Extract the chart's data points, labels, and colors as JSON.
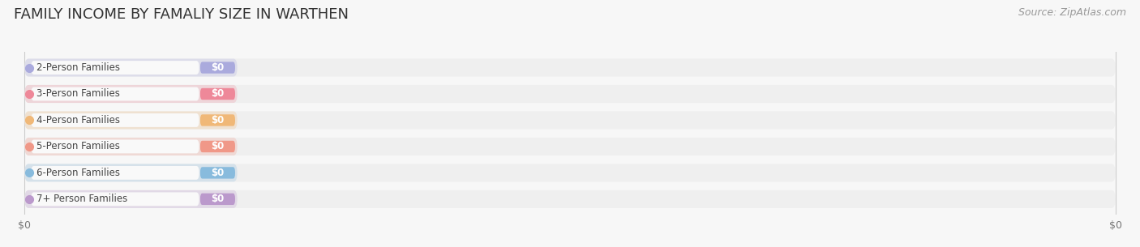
{
  "title": "FAMILY INCOME BY FAMALIY SIZE IN WARTHEN",
  "source": "Source: ZipAtlas.com",
  "categories": [
    "2-Person Families",
    "3-Person Families",
    "4-Person Families",
    "5-Person Families",
    "6-Person Families",
    "7+ Person Families"
  ],
  "values": [
    0,
    0,
    0,
    0,
    0,
    0
  ],
  "bar_colors": [
    "#aaaadd",
    "#ee8899",
    "#f0b878",
    "#f09888",
    "#88bbdd",
    "#bb99cc"
  ],
  "bg_color": "#f7f7f7",
  "bar_bg_color": "#efefef",
  "label_bg_color": "#fafafa",
  "label_color": "#444444",
  "title_color": "#333333",
  "source_color": "#999999",
  "title_fontsize": 13,
  "label_fontsize": 8.5,
  "value_fontsize": 8.5,
  "source_fontsize": 9
}
